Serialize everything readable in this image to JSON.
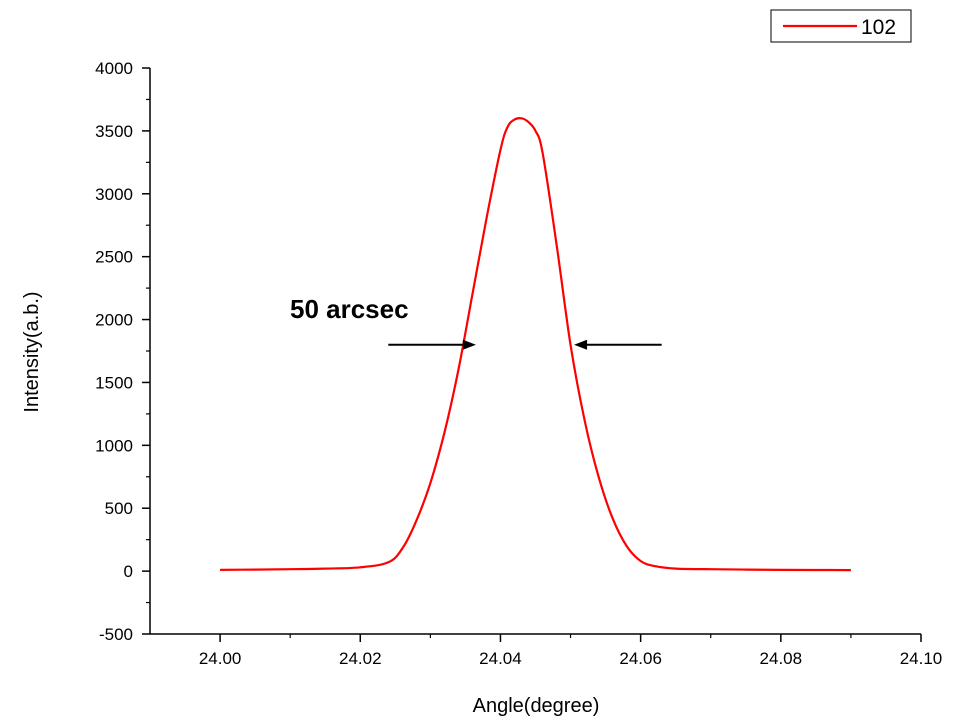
{
  "chart_data": {
    "type": "line",
    "xlabel": "Angle(degree)",
    "ylabel": "Intensity(a.b.)",
    "xlim": [
      23.99,
      24.1
    ],
    "ylim": [
      -500,
      4000
    ],
    "x_ticks": [
      "24.00",
      "24.02",
      "24.04",
      "24.06",
      "24.08",
      "24.10"
    ],
    "y_ticks": [
      "-500",
      "0",
      "500",
      "1000",
      "1500",
      "2000",
      "2500",
      "3000",
      "3500",
      "4000"
    ],
    "grid": false,
    "legend": {
      "position": "top-right"
    },
    "series": [
      {
        "name": "102",
        "color": "#ff0000",
        "x": [
          24.0,
          24.005,
          24.01,
          24.015,
          24.02,
          24.024,
          24.026,
          24.028,
          24.03,
          24.032,
          24.034,
          24.036,
          24.038,
          24.04,
          24.041,
          24.042,
          24.043,
          24.044,
          24.045,
          24.046,
          24.048,
          24.05,
          24.052,
          24.054,
          24.056,
          24.058,
          24.06,
          24.062,
          24.065,
          24.07,
          24.075,
          24.08,
          24.085,
          24.09
        ],
        "y": [
          10,
          12,
          15,
          20,
          30,
          70,
          180,
          400,
          700,
          1100,
          1600,
          2200,
          2800,
          3350,
          3530,
          3590,
          3600,
          3570,
          3500,
          3330,
          2600,
          1800,
          1200,
          750,
          420,
          200,
          80,
          40,
          20,
          15,
          12,
          10,
          9,
          8
        ]
      }
    ],
    "annotations": [
      {
        "text": "50 arcsec",
        "arrows": [
          {
            "from": [
              24.024,
              1800
            ],
            "to": [
              24.0365,
              1800
            ]
          },
          {
            "from": [
              24.063,
              1800
            ],
            "to": [
              24.0505,
              1800
            ]
          }
        ]
      }
    ]
  }
}
